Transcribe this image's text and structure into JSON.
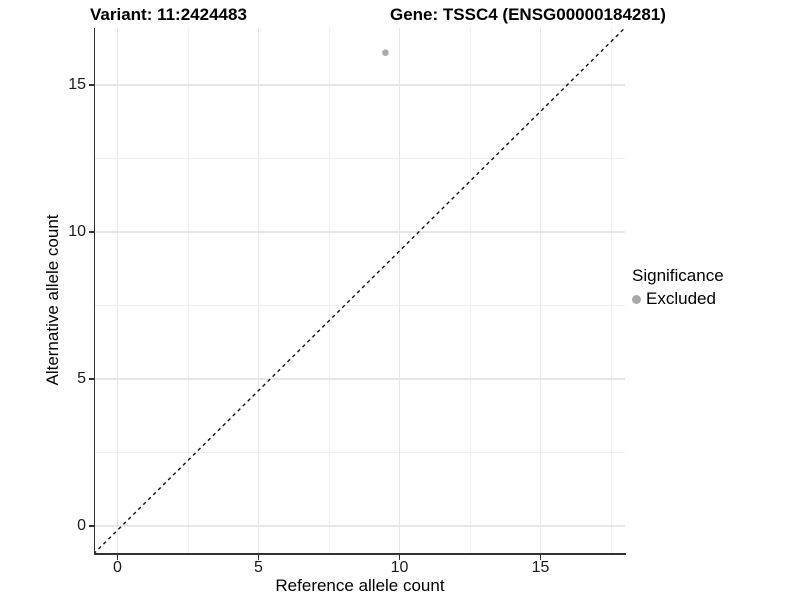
{
  "header": {
    "variant_title": "Variant: 11:2424483",
    "gene_title": "Gene: TSSC4 (ENSG00000184281)"
  },
  "chart_data": {
    "type": "scatter",
    "xlabel": "Reference allele count",
    "ylabel": "Alternative allele count",
    "x_ticks": [
      0,
      5,
      10,
      15
    ],
    "y_ticks": [
      0,
      5,
      10,
      15
    ],
    "x_tick_labels": [
      "0",
      "5",
      "10",
      "15"
    ],
    "y_tick_labels": [
      "0",
      "5",
      "10",
      "15"
    ],
    "xlim": [
      -0.85,
      18.0
    ],
    "ylim": [
      -0.95,
      16.95
    ],
    "grid": "major+minor",
    "minor_interval": 2.5,
    "identity_line": {
      "shown": true,
      "style": "dashed",
      "color": "#111111",
      "from": [
        -0.85,
        -0.95
      ],
      "to": [
        18.0,
        16.95
      ]
    },
    "series": [
      {
        "name": "Excluded",
        "color": "#a9a9a9",
        "points": [
          [
            9.5,
            16.1
          ]
        ]
      }
    ],
    "legend": {
      "title": "Significance",
      "position": "right",
      "items": [
        {
          "label": "Excluded",
          "color": "#a9a9a9"
        }
      ]
    }
  },
  "colors": {
    "background": "#ffffff",
    "gridline": "#e9e9e9",
    "axis_line": "#333333",
    "text": "#000000",
    "point": "#a9a9a9"
  }
}
